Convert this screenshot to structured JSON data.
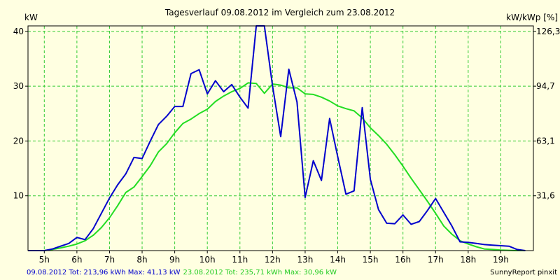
{
  "chart_data": {
    "type": "line",
    "title": "Tagesverlauf 09.08.2012 im Vergleich zum 23.08.2012",
    "ylabel_left": "kW",
    "ylabel_right": "kW/kWp [%]",
    "ylim": [
      0,
      41
    ],
    "y_ticks": [
      10,
      20,
      30,
      40
    ],
    "y_right_ticks": [
      "31,6",
      "63,1",
      "94,7",
      "126,3"
    ],
    "xlim": [
      4.5,
      20.0
    ],
    "x_ticks": [
      "5h",
      "6h",
      "7h",
      "8h",
      "9h",
      "10h",
      "11h",
      "12h",
      "13h",
      "14h",
      "15h",
      "16h",
      "17h",
      "18h",
      "19h"
    ],
    "grid": true,
    "colors": {
      "background": "#ffffe1",
      "grid": "#33cc33",
      "axis": "#000000"
    },
    "series": [
      {
        "name": "09.08.2012",
        "color": "#0000cc",
        "x": [
          4.5,
          5.0,
          5.25,
          5.5,
          5.75,
          6.0,
          6.25,
          6.5,
          6.75,
          7.0,
          7.25,
          7.5,
          7.75,
          8.0,
          8.25,
          8.5,
          8.75,
          9.0,
          9.25,
          9.5,
          9.75,
          10.0,
          10.25,
          10.5,
          10.75,
          11.0,
          11.25,
          11.5,
          11.75,
          12.0,
          12.25,
          12.5,
          12.75,
          13.0,
          13.25,
          13.5,
          13.75,
          14.0,
          14.25,
          14.5,
          14.75,
          15.0,
          15.25,
          15.5,
          15.75,
          16.0,
          16.25,
          16.5,
          16.75,
          17.0,
          17.25,
          17.5,
          17.75,
          18.0,
          18.25,
          18.5,
          18.75,
          19.0,
          19.25,
          19.5,
          19.75
        ],
        "values": [
          0.0,
          0.0,
          0.3,
          0.8,
          1.3,
          2.4,
          2.0,
          4.0,
          6.8,
          9.6,
          12.0,
          14.0,
          17.0,
          16.8,
          20.0,
          23.0,
          24.5,
          26.3,
          26.3,
          32.3,
          33.0,
          28.6,
          31.0,
          29.0,
          30.3,
          28.0,
          26.0,
          41.1,
          41.1,
          30.0,
          20.8,
          33.1,
          27.1,
          9.7,
          16.4,
          12.8,
          24.1,
          17.1,
          10.3,
          10.9,
          26.1,
          13.0,
          7.5,
          5.0,
          4.9,
          6.5,
          4.8,
          5.3,
          7.3,
          9.5,
          7.0,
          4.5,
          1.6,
          1.5,
          1.3,
          1.1,
          1.0,
          0.9,
          0.8,
          0.2,
          0.0
        ]
      },
      {
        "name": "23.08.2012",
        "color": "#22dd22",
        "x": [
          4.5,
          5.0,
          5.25,
          5.5,
          5.75,
          6.0,
          6.25,
          6.5,
          6.75,
          7.0,
          7.25,
          7.5,
          7.75,
          8.0,
          8.25,
          8.5,
          8.75,
          9.0,
          9.25,
          9.5,
          9.75,
          10.0,
          10.25,
          10.5,
          10.75,
          11.0,
          11.25,
          11.5,
          11.75,
          12.0,
          12.25,
          12.5,
          12.75,
          13.0,
          13.25,
          13.5,
          13.75,
          14.0,
          14.25,
          14.5,
          14.75,
          15.0,
          15.25,
          15.5,
          15.75,
          16.0,
          16.25,
          16.5,
          16.75,
          17.0,
          17.25,
          17.5,
          17.75,
          18.0,
          18.25,
          18.5,
          18.75,
          19.0,
          19.25,
          19.5,
          19.75
        ],
        "values": [
          0.0,
          0.0,
          0.2,
          0.5,
          0.8,
          1.2,
          1.8,
          2.8,
          4.2,
          6.0,
          8.2,
          10.6,
          11.6,
          13.5,
          15.5,
          18.0,
          19.5,
          21.5,
          23.2,
          24.0,
          25.0,
          25.8,
          27.2,
          28.2,
          29.0,
          29.6,
          30.6,
          30.5,
          28.7,
          30.4,
          30.2,
          29.7,
          29.7,
          28.6,
          28.5,
          28.0,
          27.3,
          26.4,
          25.9,
          25.5,
          24.2,
          22.4,
          21.0,
          19.4,
          17.5,
          15.4,
          13.2,
          11.1,
          9.0,
          6.8,
          4.5,
          3.0,
          1.8,
          1.2,
          0.7,
          0.3,
          0.2,
          0.1,
          0.05,
          0.0,
          0.0
        ]
      }
    ],
    "footer": {
      "series1": "09.08.2012 Tot: 213,96 kWh Max: 41,13 kW",
      "series2": "23.08.2012 Tot: 235,71 kWh Max: 30,96 kW",
      "credit": "SunnyReport pinxit"
    }
  }
}
